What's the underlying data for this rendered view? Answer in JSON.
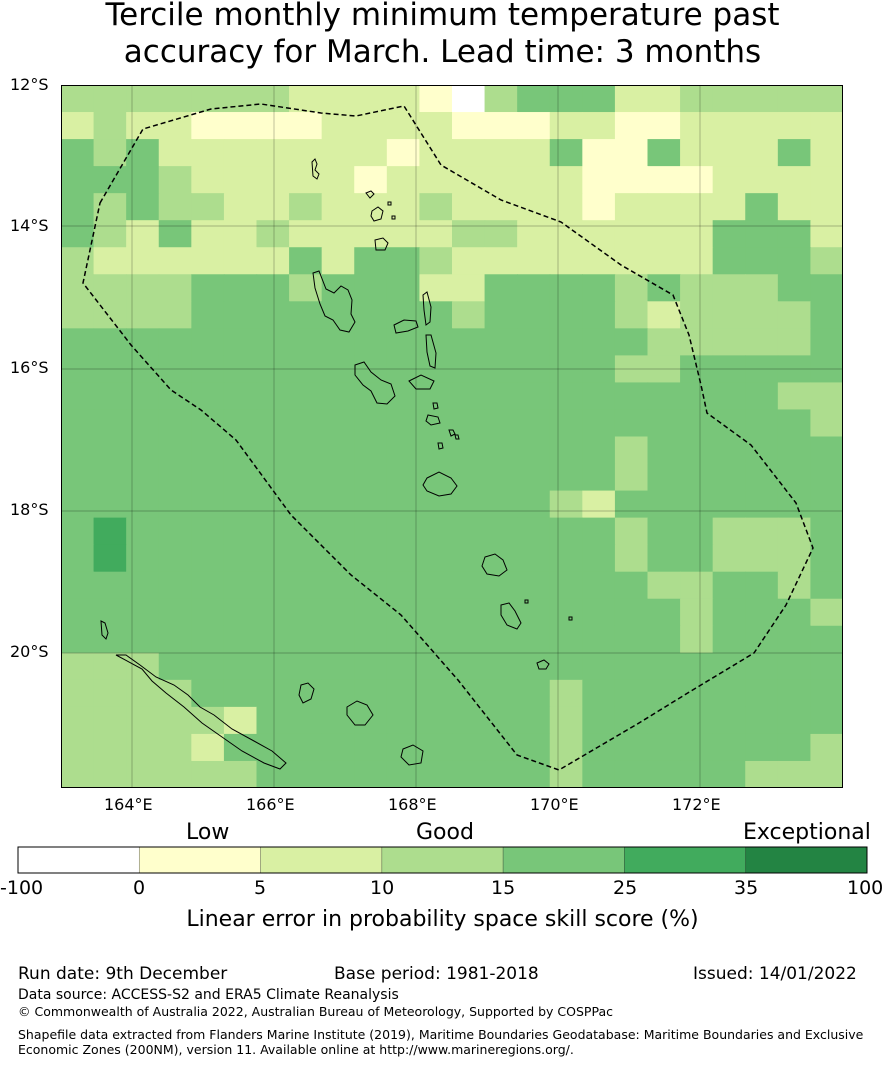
{
  "title": {
    "line1": "Tercile monthly minimum temperature past",
    "line2": "accuracy for March. Lead time: 3 months"
  },
  "map": {
    "lat_ticks": [
      "12°S",
      "14°S",
      "16°S",
      "18°S",
      "20°S"
    ],
    "lon_ticks": [
      "164°E",
      "166°E",
      "168°E",
      "170°E",
      "172°E"
    ],
    "grid_lon_start": 163.0,
    "grid_lat_start": -12.0,
    "grid_step_lon": 0.8333,
    "grid_step_lat": 0.5556,
    "colors": {
      "0": "#ffffff",
      "1": "#ffffcc",
      "2": "#d9f0a3",
      "3": "#addd8e",
      "4": "#78c679",
      "5": "#41ab5d",
      "6": "#238443"
    },
    "grid": [
      "333333322221034442233333",
      "232211112222111221122222",
      "434222222212222411422242",
      "444322222122222211112222",
      "434332232223222212222422",
      "432422322222332222224442",
      "322222242443222222224443",
      "333344434442244443433344",
      "333344444444344443233334",
      "444444444444444444333334",
      "444444444444444443344444",
      "444444444444444444444433",
      "444444444444444444444443",
      "444444444444444443444444",
      "444444444444444443444444",
      "444444444444444324444444",
      "454444444444444443443334",
      "454444444444444443443334",
      "444444444444444444334434",
      "444444444444444444434443",
      "444444444444444444434444",
      "333444444444444444444444",
      "333344444444444344444444",
      "333332444444444344444444",
      "333324444444444344444443",
      "333333444444444344444333"
    ]
  },
  "colorbar": {
    "categories": {
      "low": "Low",
      "good": "Good",
      "exceptional": "Exceptional"
    },
    "ticks": [
      "-100",
      "0",
      "5",
      "10",
      "15",
      "25",
      "35",
      "100"
    ],
    "colors": [
      "#ffffff",
      "#ffffcc",
      "#d9f0a3",
      "#addd8e",
      "#78c679",
      "#41ab5d",
      "#238443"
    ],
    "label": "Linear error in probability space skill score (%)"
  },
  "footer": {
    "run_date": "Run date: 9th December",
    "base_period": "Base period: 1981-2018",
    "issued": "Issued: 14/01/2022",
    "data_source": "Data source: ACCESS-S2 and ERA5 Climate Reanalysis",
    "copyright": "© Commonwealth of Australia 2022, Australian Bureau of Meteorology, Supported by COSPPac",
    "shapefile_line1": "Shapefile data extracted from Flanders Marine Institute (2019), Maritime Boundaries Geodatabase: Maritime Boundaries and Exclusive",
    "shapefile_line2": "Economic Zones (200NM), version 11. Available online at http://www.marineregions.org/."
  }
}
